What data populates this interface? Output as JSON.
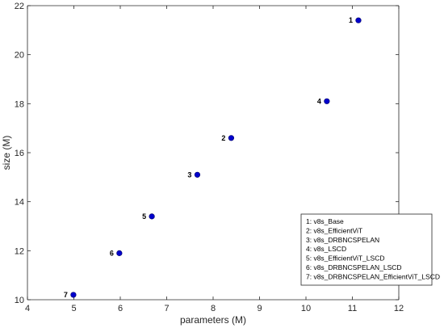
{
  "chart_data": {
    "type": "scatter",
    "xlabel": "parameters (M)",
    "ylabel": "size (M)",
    "xlim": [
      4,
      12
    ],
    "ylim": [
      10,
      22
    ],
    "xticks": [
      "4",
      "5",
      "6",
      "7",
      "8",
      "9",
      "10",
      "11",
      "12"
    ],
    "yticks": [
      "10",
      "12",
      "14",
      "16",
      "18",
      "20",
      "22"
    ],
    "grid": false,
    "legend_position": "bottom-right",
    "marker_color": "#0000cc",
    "points": [
      {
        "label": "1",
        "x": 11.13,
        "y": 21.4
      },
      {
        "label": "2",
        "x": 8.39,
        "y": 16.6
      },
      {
        "label": "3",
        "x": 7.66,
        "y": 15.1
      },
      {
        "label": "4",
        "x": 10.45,
        "y": 18.1
      },
      {
        "label": "5",
        "x": 6.68,
        "y": 13.4
      },
      {
        "label": "6",
        "x": 5.98,
        "y": 11.9
      },
      {
        "label": "7",
        "x": 4.99,
        "y": 10.2
      }
    ],
    "legend": [
      "1: v8s_Base",
      "2: v8s_EfficientViT",
      "3: v8s_DRBNCSPELAN",
      "4: v8s_LSCD",
      "5: v8s_EfficientViT_LSCD",
      "6: v8s_DRBNCSPELAN_LSCD",
      "7: v8s_DRBNCSPELAN_EfficientViT_LSCD"
    ]
  }
}
